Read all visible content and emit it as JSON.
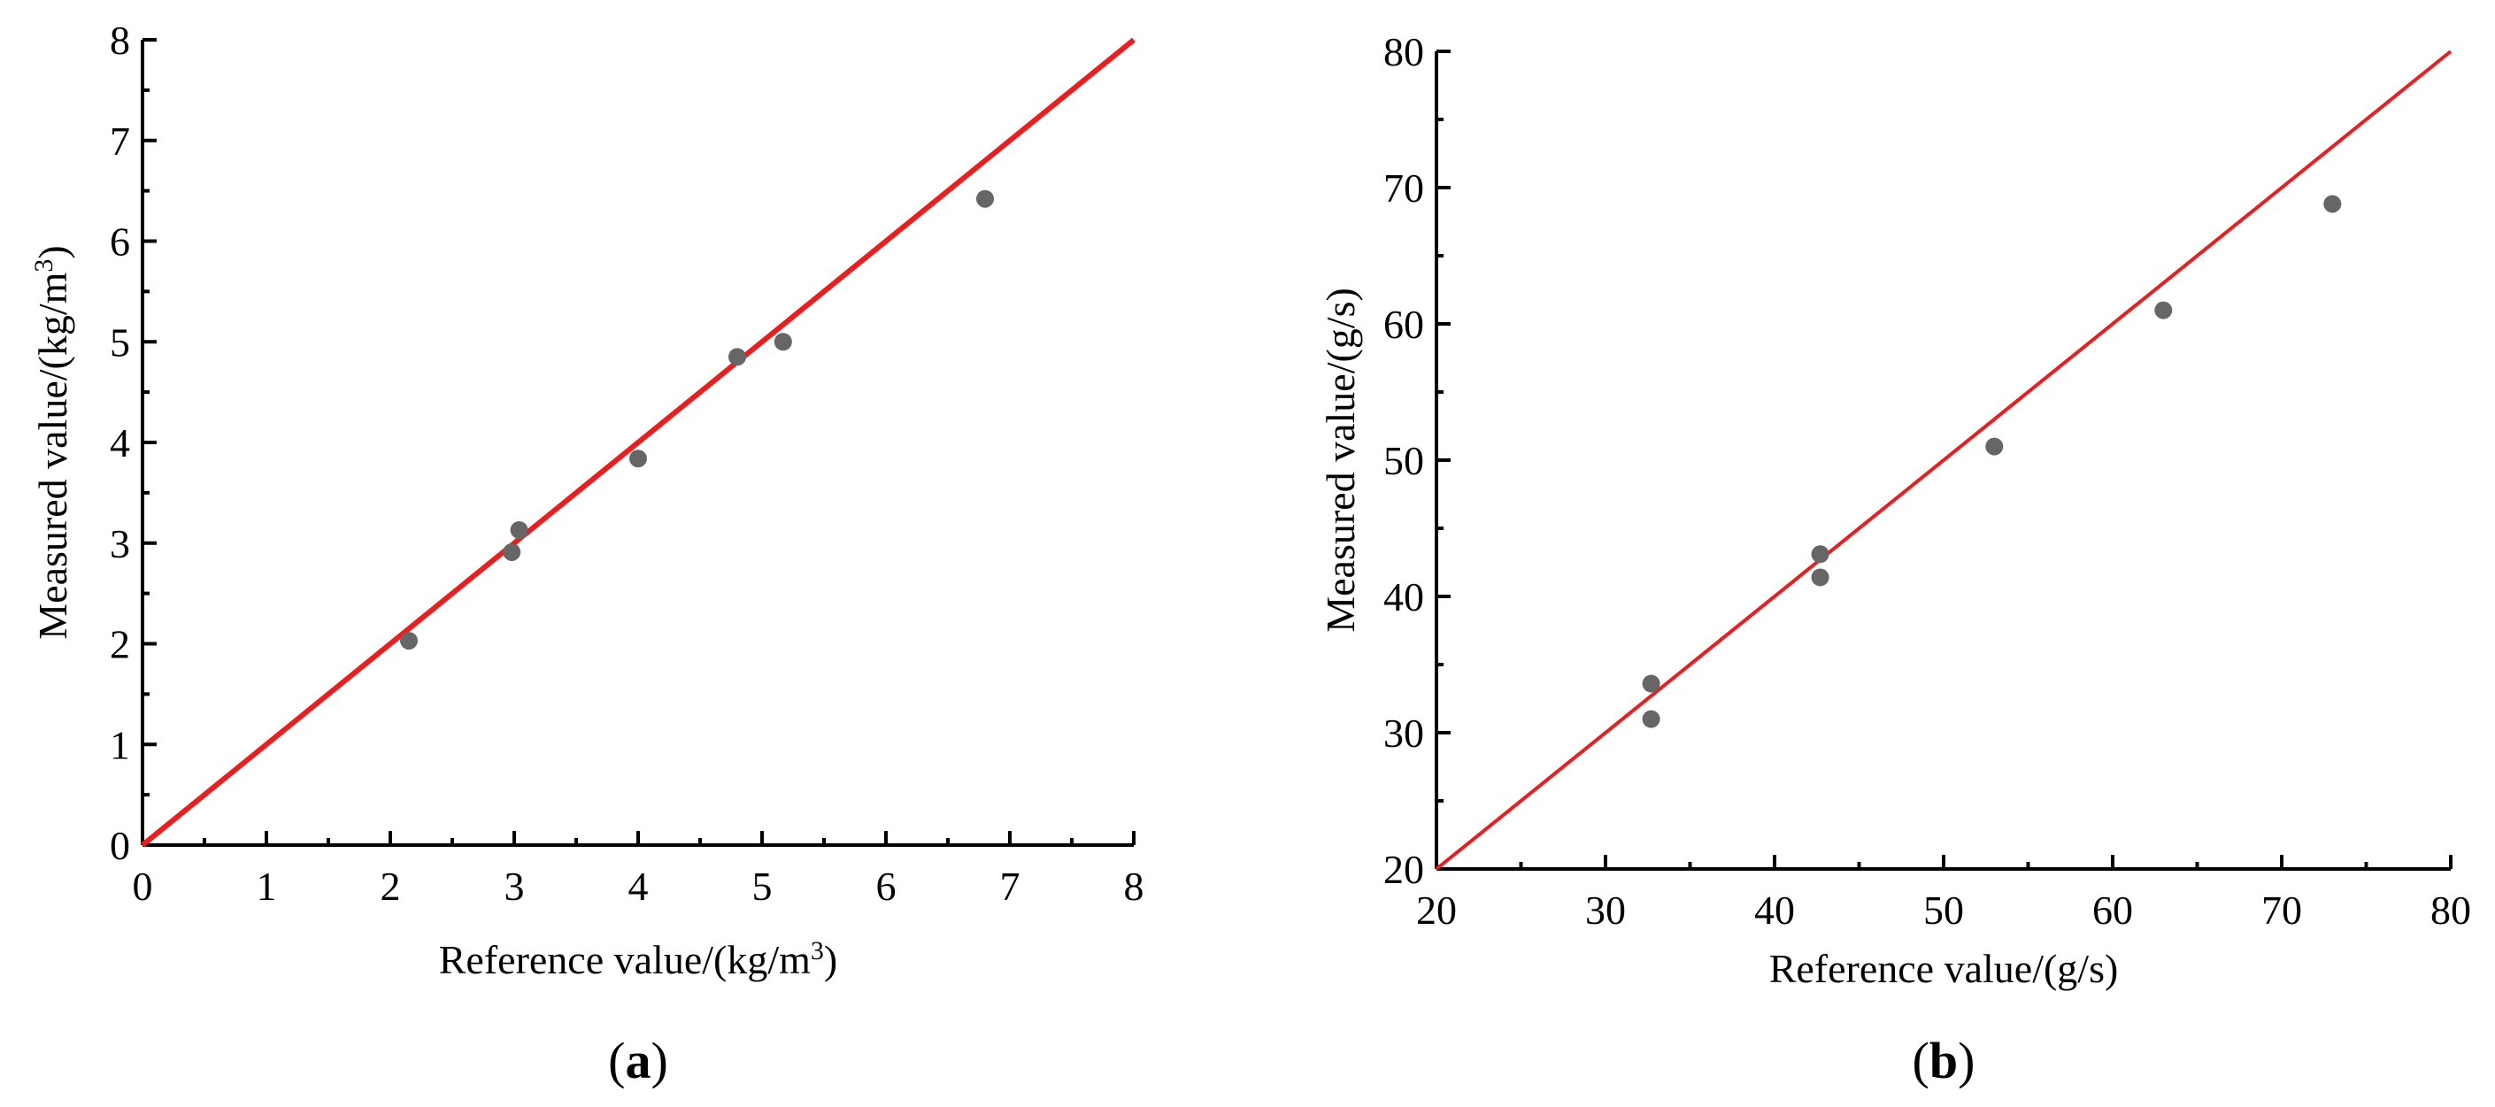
{
  "chart_data": [
    {
      "type": "scatter",
      "panel_label": "a",
      "xlabel": "Reference value/(kg/m³)",
      "ylabel": "Measured value/(kg/m³)",
      "xlim": [
        0,
        8
      ],
      "ylim": [
        0,
        8
      ],
      "x_ticks": [
        "0",
        "1",
        "2",
        "3",
        "4",
        "5",
        "6",
        "7",
        "8"
      ],
      "y_ticks": [
        "0",
        "1",
        "2",
        "3",
        "4",
        "5",
        "6",
        "7",
        "8"
      ],
      "grid": false,
      "reference_line": {
        "from": [
          0,
          0
        ],
        "to": [
          8,
          8
        ],
        "color": "#ee1c1c"
      },
      "point_color": "#666666",
      "points": [
        {
          "x": 2.15,
          "y": 2.03
        },
        {
          "x": 2.98,
          "y": 2.91
        },
        {
          "x": 3.04,
          "y": 3.13
        },
        {
          "x": 4.0,
          "y": 3.84
        },
        {
          "x": 4.8,
          "y": 4.85
        },
        {
          "x": 5.17,
          "y": 5.0
        },
        {
          "x": 6.8,
          "y": 6.42
        }
      ]
    },
    {
      "type": "scatter",
      "panel_label": "b",
      "xlabel": "Reference value/(g/s)",
      "ylabel": "Measured value/(g/s)",
      "xlim": [
        20,
        80
      ],
      "ylim": [
        20,
        80
      ],
      "x_ticks": [
        "20",
        "30",
        "40",
        "50",
        "60",
        "70",
        "80"
      ],
      "y_ticks": [
        "20",
        "30",
        "40",
        "50",
        "60",
        "70",
        "80"
      ],
      "grid": false,
      "reference_line": {
        "from": [
          20,
          20
        ],
        "to": [
          80,
          80
        ],
        "color": "#ee1c1c"
      },
      "point_color": "#666666",
      "points": [
        {
          "x": 32.7,
          "y": 33.6
        },
        {
          "x": 32.7,
          "y": 31.0
        },
        {
          "x": 42.7,
          "y": 43.1
        },
        {
          "x": 42.7,
          "y": 41.4
        },
        {
          "x": 53.0,
          "y": 51.0
        },
        {
          "x": 63.0,
          "y": 61.0
        },
        {
          "x": 73.0,
          "y": 68.8
        }
      ]
    }
  ]
}
